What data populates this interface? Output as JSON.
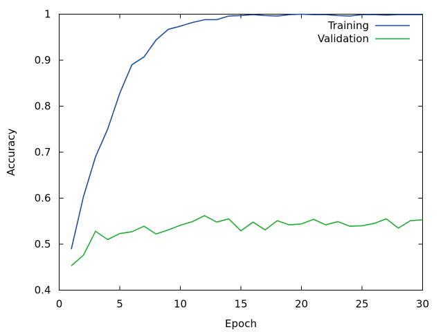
{
  "chart_data": {
    "type": "line",
    "xlabel": "Epoch",
    "ylabel": "Accuracy",
    "xlim": [
      0,
      30
    ],
    "ylim": [
      0.4,
      1
    ],
    "xticks": [
      "0",
      "5",
      "10",
      "15",
      "20",
      "25",
      "30"
    ],
    "yticks": [
      "0.4",
      "0.5",
      "0.6",
      "0.7",
      "0.8",
      "0.9",
      "1"
    ],
    "grid": false,
    "legend_position": "top-right",
    "x": [
      1,
      2,
      3,
      4,
      5,
      6,
      7,
      8,
      9,
      10,
      11,
      12,
      13,
      14,
      15,
      16,
      17,
      18,
      19,
      20,
      21,
      22,
      23,
      24,
      25,
      26,
      27,
      28,
      29,
      30
    ],
    "series": [
      {
        "name": "Training",
        "color": "#1f4e9b",
        "values": [
          0.489,
          0.603,
          0.69,
          0.75,
          0.828,
          0.89,
          0.907,
          0.944,
          0.967,
          0.974,
          0.982,
          0.988,
          0.988,
          0.996,
          0.997,
          0.999,
          0.997,
          0.996,
          0.999,
          1.0,
          0.999,
          0.999,
          0.997,
          0.996,
          0.999,
          0.999,
          0.998,
          0.999,
          0.999,
          0.999
        ]
      },
      {
        "name": "Validation",
        "color": "#22aa33",
        "values": [
          0.453,
          0.476,
          0.528,
          0.51,
          0.523,
          0.527,
          0.539,
          0.522,
          0.531,
          0.541,
          0.549,
          0.562,
          0.548,
          0.555,
          0.529,
          0.548,
          0.531,
          0.551,
          0.542,
          0.544,
          0.554,
          0.542,
          0.549,
          0.539,
          0.54,
          0.545,
          0.555,
          0.535,
          0.551,
          0.553
        ]
      }
    ]
  }
}
